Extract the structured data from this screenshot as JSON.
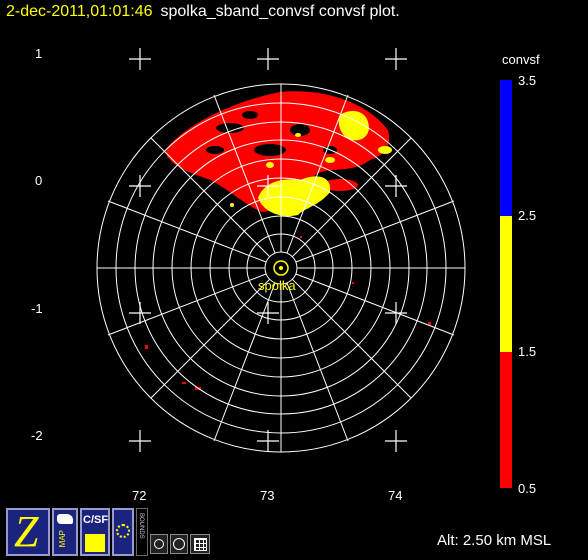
{
  "header": {
    "timestamp": "2-dec-2011,01:01:46",
    "title_rest": "spolka_sband_convsf convsf  plot."
  },
  "map": {
    "station_label": "spolka",
    "lat_ticks": [
      "1",
      "0",
      "-1",
      "-2"
    ],
    "lon_ticks": [
      "72",
      "73",
      "74"
    ]
  },
  "colorbar": {
    "title": "convsf",
    "ticks": [
      "3.5",
      "2.5",
      "1.5",
      "0.5"
    ],
    "colors": {
      "low": "#ff0000",
      "mid": "#ffff00",
      "high": "#0000ff"
    }
  },
  "status": {
    "altitude": "Alt: 2.50 km MSL"
  },
  "toolbar": {
    "z_label": "Z",
    "map_label": "MAP",
    "csf_label": "C/SF",
    "bounds_label": "BOUNDS"
  }
}
